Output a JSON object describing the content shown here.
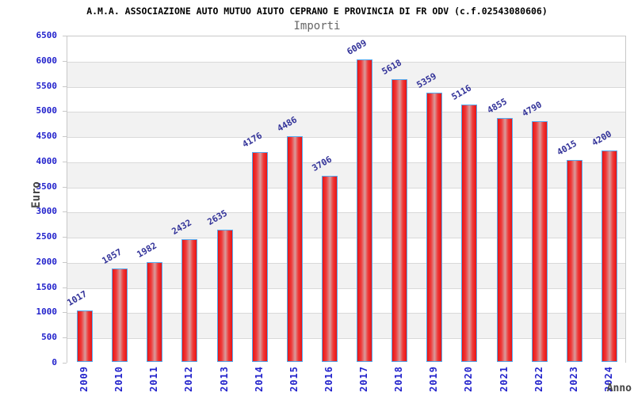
{
  "chart_data": {
    "type": "bar",
    "title": "A.M.A. ASSOCIAZIONE AUTO MUTUO AIUTO CEPRANO E PROVINCIA DI FR ODV (c.f.02543080606)",
    "subtitle": "Importi",
    "xlabel": "Anno",
    "ylabel": "Euro",
    "categories": [
      "2009",
      "2010",
      "2011",
      "2012",
      "2013",
      "2014",
      "2015",
      "2016",
      "2017",
      "2018",
      "2019",
      "2020",
      "2021",
      "2022",
      "2023",
      "2024"
    ],
    "values": [
      1017,
      1857,
      1982,
      2432,
      2635,
      4176,
      4486,
      3706,
      6009,
      5618,
      5359,
      5116,
      4855,
      4790,
      4015,
      4200
    ],
    "ylim": [
      0,
      6500
    ],
    "ytick_step": 500,
    "grid": true,
    "legend": "none",
    "background_bands": "alternating white and light gray",
    "colors": {
      "title": "#000000",
      "subtitle": "#666666",
      "axis_tick_label": "#2222cc",
      "value_label": "#333399",
      "band": "#f2f2f2",
      "gridline": "#d9d9d9",
      "plot_border": "#c8c8c8",
      "axis_title": "#444444",
      "bar_fill": "#e81414",
      "bar_highlight": "#d89c9c",
      "bar_border": "#55aaee"
    }
  }
}
